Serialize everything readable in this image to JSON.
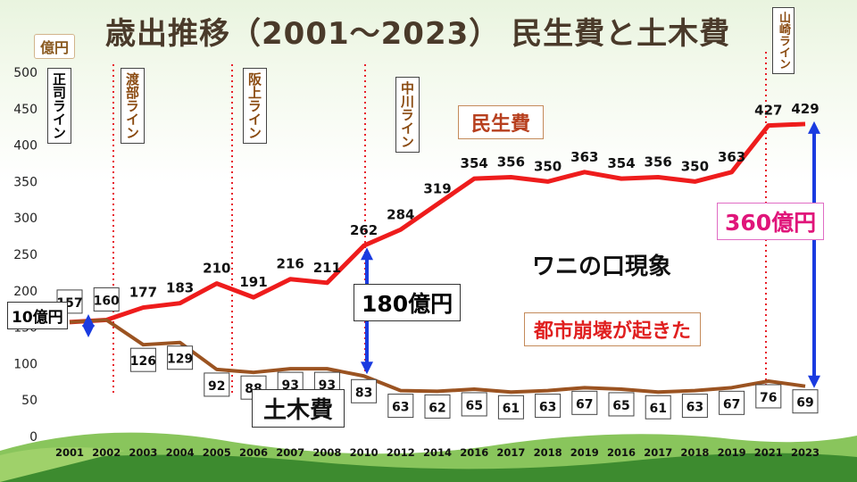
{
  "title": "歳出推移（2001～2023） 民生費と土木費",
  "unit_label": "億円",
  "annotations": {
    "wani": "ワニの口現象",
    "toshi": "都市崩壊が起きた",
    "minsei_label": "民生費",
    "doboku_label": "土木費",
    "amt180": "180億円",
    "amt360": "360億円",
    "amt10": "10億円"
  },
  "mayor_lines": [
    {
      "label": "正司ライン"
    },
    {
      "label": "渡部ライン"
    },
    {
      "label": "阪上ライン"
    },
    {
      "label": "中川ライン"
    },
    {
      "label": "山崎ライン"
    }
  ],
  "chart_data": {
    "type": "line",
    "title": "歳出推移（2001～2023） 民生費と土木費",
    "categories": [
      "2001",
      "2002",
      "2003",
      "2004",
      "2005",
      "2006",
      "2007",
      "2008",
      "2010",
      "2012",
      "2014",
      "2016",
      "2017",
      "2018",
      "2019",
      "2016",
      "2017",
      "2018",
      "2019",
      "2021",
      "2023"
    ],
    "ylim": [
      0,
      500
    ],
    "yticks": [
      0,
      50,
      100,
      150,
      200,
      250,
      300,
      350,
      400,
      450,
      500
    ],
    "grid": false,
    "series": [
      {
        "name": "民生費",
        "color": "#ee1c1c",
        "values": [
          157,
          160,
          177,
          183,
          210,
          191,
          216,
          211,
          262,
          284,
          319,
          354,
          356,
          350,
          363,
          354,
          356,
          350,
          363,
          427,
          429
        ]
      },
      {
        "name": "土木費",
        "color": "#9b5321",
        "values": [
          157,
          160,
          126,
          129,
          92,
          88,
          93,
          93,
          83,
          63,
          62,
          65,
          61,
          63,
          67,
          65,
          61,
          63,
          67,
          76,
          69
        ]
      }
    ],
    "vertical_markers_after": [
      "2002",
      "2005",
      "2010",
      "2021"
    ]
  }
}
